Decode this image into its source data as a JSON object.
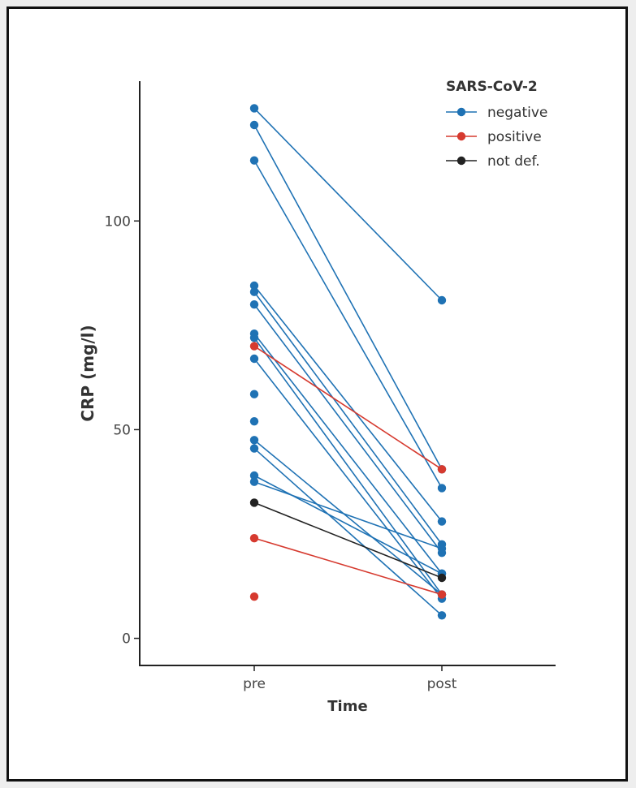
{
  "chart_data": {
    "type": "line",
    "title": "",
    "xlabel": "Time",
    "ylabel": "CRP (mg/l)",
    "categories": [
      "pre",
      "post"
    ],
    "ylim": [
      -6.5,
      133.5
    ],
    "yticks": [
      0,
      50,
      100
    ],
    "ytick_labels": [
      "0",
      "50",
      "100"
    ],
    "legend": {
      "title": "SARS-CoV-2",
      "position": "top-right",
      "entries": [
        {
          "key": "negative",
          "label": "negative",
          "color": "#1f72b4"
        },
        {
          "key": "positive",
          "label": "positive",
          "color": "#d63a2f"
        },
        {
          "key": "notdef",
          "label": "not def.",
          "color": "#222222"
        }
      ]
    },
    "series": [
      {
        "group": "negative",
        "values": [
          127,
          81
        ]
      },
      {
        "group": "negative",
        "values": [
          123,
          40.5
        ]
      },
      {
        "group": "negative",
        "values": [
          114.5,
          36
        ]
      },
      {
        "group": "negative",
        "values": [
          84.5,
          28
        ]
      },
      {
        "group": "negative",
        "values": [
          83,
          22.5
        ]
      },
      {
        "group": "negative",
        "values": [
          80,
          20.5
        ]
      },
      {
        "group": "negative",
        "values": [
          73,
          15.5
        ]
      },
      {
        "group": "negative",
        "values": [
          72,
          10.5
        ]
      },
      {
        "group": "negative",
        "values": [
          67,
          9.5
        ]
      },
      {
        "group": "negative",
        "values": [
          47.5,
          10.5
        ]
      },
      {
        "group": "negative",
        "values": [
          45.5,
          5.5
        ]
      },
      {
        "group": "negative",
        "values": [
          39,
          15.5
        ]
      },
      {
        "group": "negative",
        "values": [
          37.5,
          21.5
        ]
      },
      {
        "group": "negative",
        "values": [
          58.5,
          null
        ]
      },
      {
        "group": "negative",
        "values": [
          52,
          null
        ]
      },
      {
        "group": "positive",
        "values": [
          70,
          40.5
        ]
      },
      {
        "group": "positive",
        "values": [
          24,
          10.5
        ]
      },
      {
        "group": "positive",
        "values": [
          10,
          null
        ]
      },
      {
        "group": "notdef",
        "values": [
          32.5,
          14.5
        ]
      }
    ]
  }
}
